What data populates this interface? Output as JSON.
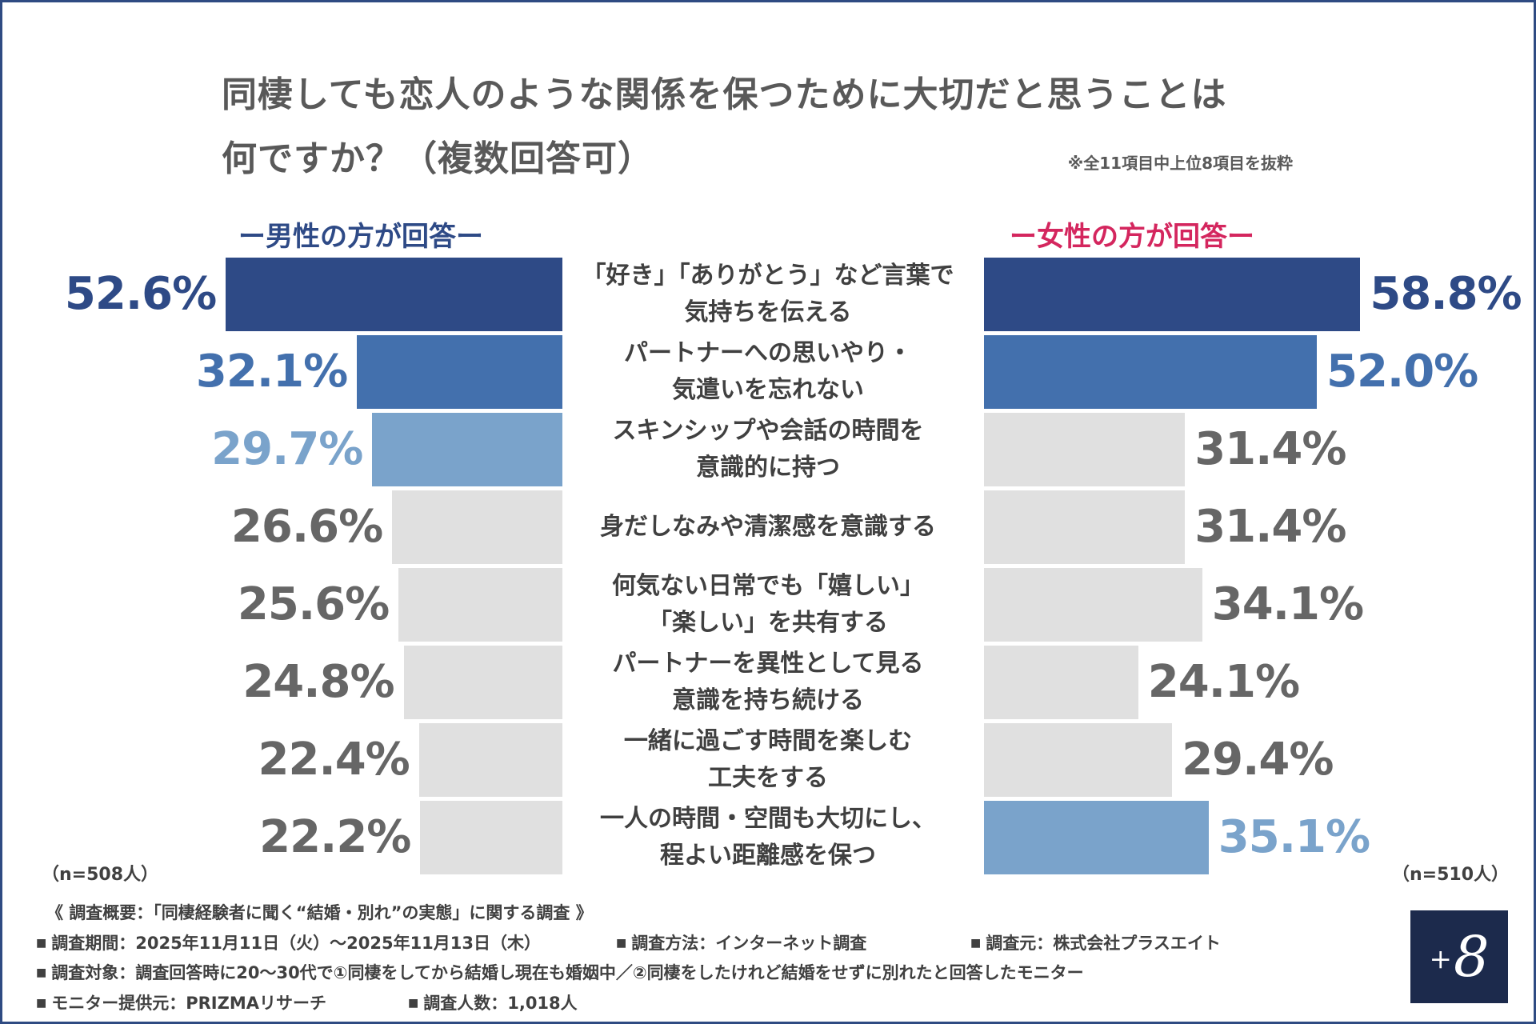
{
  "title_lines": [
    "同棲しても恋人のような関係を保つために大切だと思うことは",
    "何ですか？（複数回答可）"
  ],
  "note": "※全11項目中上位8項目を抜粋",
  "colors": {
    "rank1": "#2e4a86",
    "rank2": "#4370ad",
    "rank3": "#7aa3cb",
    "other_bar": "#e0e0e0",
    "other_text": "#666666",
    "female_head": "#d4265e",
    "frame": "#2f4b82",
    "logo_bg": "#1c2a4c"
  },
  "chart_data": {
    "type": "bar",
    "orientation": "horizontal-butterfly",
    "categories": [
      [
        "「好き」「ありがとう」など言葉で",
        "気持ちを伝える"
      ],
      [
        "パートナーへの思いやり・",
        "気遣いを忘れない"
      ],
      [
        "スキンシップや会話の時間を",
        "意識的に持つ"
      ],
      [
        "身だしなみや清潔感を意識する"
      ],
      [
        "何気ない日常でも「嬉しい」",
        "「楽しい」を共有する"
      ],
      [
        "パートナーを異性として見る",
        "意識を持ち続ける"
      ],
      [
        "一緒に過ごす時間を楽しむ",
        "工夫をする"
      ],
      [
        "一人の時間・空間も大切にし、",
        "程よい距離感を保つ"
      ]
    ],
    "series": [
      {
        "name": "男性",
        "header": "ー男性の方が回答ー",
        "n_label": "（n=508人）",
        "values": [
          52.6,
          32.1,
          29.7,
          26.6,
          25.6,
          24.8,
          22.4,
          22.2
        ],
        "labels": [
          "52.6%",
          "32.1%",
          "29.7%",
          "26.6%",
          "25.6%",
          "24.8%",
          "22.4%",
          "22.2%"
        ],
        "color_keys": [
          "rank1",
          "rank2",
          "rank3",
          "other",
          "other",
          "other",
          "other",
          "other"
        ]
      },
      {
        "name": "女性",
        "header": "ー女性の方が回答ー",
        "n_label": "（n=510人）",
        "values": [
          58.8,
          52.0,
          31.4,
          31.4,
          34.1,
          24.1,
          29.4,
          35.1
        ],
        "labels": [
          "58.8%",
          "52.0%",
          "31.4%",
          "31.4%",
          "34.1%",
          "24.1%",
          "29.4%",
          "35.1%"
        ],
        "color_keys": [
          "rank1",
          "rank2",
          "other",
          "other",
          "other",
          "other",
          "other",
          "rank3"
        ]
      }
    ],
    "xlim": [
      0,
      60
    ]
  },
  "footer": {
    "survey_title": "《 調査概要：「同棲経験者に聞く“結婚・別れ”の実態」に関する調査 》",
    "period": "調査期間：2025年11月11日（火）〜2025年11月13日（木）",
    "method": "調査方法：インターネット調査",
    "source": "調査元：株式会社プラスエイト",
    "target": "調査対象：調査回答時に20〜30代で①同棲をしてから結婚し現在も婚姻中／②同棲をしたけれど結婚をせずに別れたと回答したモニター",
    "provider": "モニター提供元：PRIZMAリサーチ",
    "count": "調査人数：1,018人"
  },
  "logo": {
    "plus": "+",
    "eight": "8"
  }
}
